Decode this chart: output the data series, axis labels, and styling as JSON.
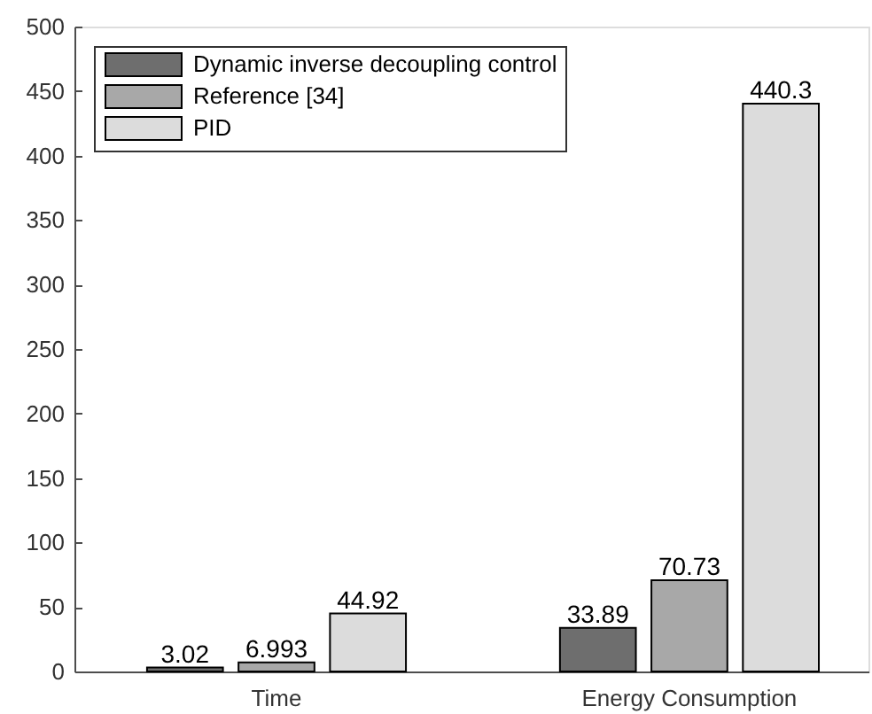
{
  "chart_data": {
    "type": "bar",
    "categories": [
      "Time",
      "Energy Consumption"
    ],
    "series": [
      {
        "name": "Dynamic inverse decoupling control",
        "color": "#6e6e6e",
        "values": [
          3.02,
          33.89
        ]
      },
      {
        "name": "Reference [34]",
        "color": "#a8a8a8",
        "values": [
          6.993,
          70.73
        ]
      },
      {
        "name": "PID",
        "color": "#dcdcdc",
        "values": [
          44.92,
          440.3
        ]
      }
    ],
    "ylim": [
      0,
      500
    ],
    "yticks": [
      0,
      50,
      100,
      150,
      200,
      250,
      300,
      350,
      400,
      450,
      500
    ],
    "data_labels": true,
    "legend": "top left"
  }
}
